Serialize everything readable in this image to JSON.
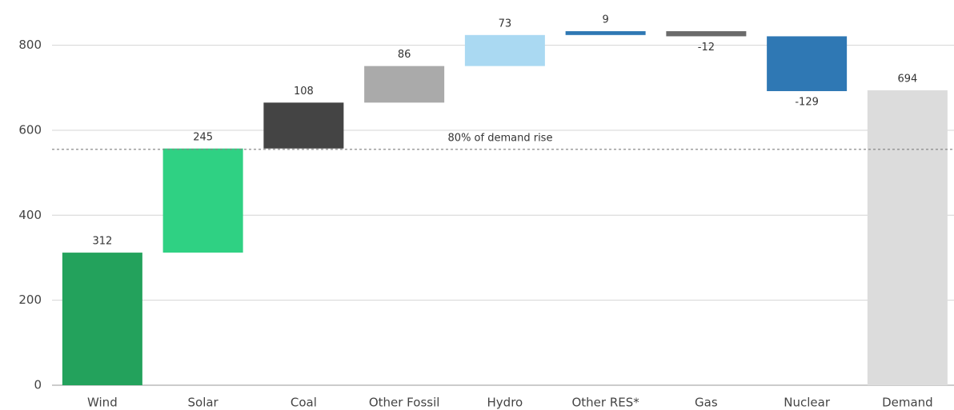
{
  "chart_data": {
    "type": "waterfall",
    "categories": [
      "Wind",
      "Solar",
      "Coal",
      "Other Fossil",
      "Hydro",
      "Other RES*",
      "Gas",
      "Nuclear",
      "Demand"
    ],
    "values": [
      312,
      245,
      108,
      86,
      73,
      9,
      -12,
      -129,
      694
    ],
    "is_total": [
      false,
      false,
      false,
      false,
      false,
      false,
      false,
      false,
      true
    ],
    "colors": [
      "#23a25c",
      "#2fd183",
      "#444444",
      "#aaaaaa",
      "#aad9f2",
      "#2f78b4",
      "#6b6b6b",
      "#2f78b4",
      "#dcdcdc"
    ],
    "ylim": [
      0,
      850
    ],
    "yticks": [
      0,
      200,
      400,
      600,
      800
    ],
    "grid": true,
    "reference_line": {
      "value": 555,
      "label": "80% of demand rise"
    }
  }
}
